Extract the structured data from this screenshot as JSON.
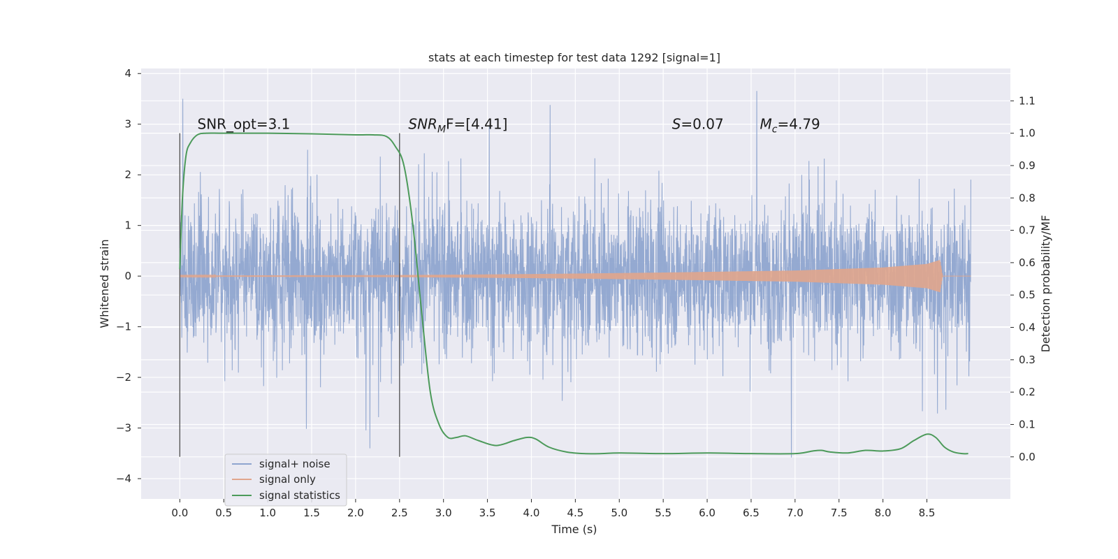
{
  "chart_data": {
    "type": "line",
    "title": "stats at each timestep for test data 1292 [signal=1]",
    "xlabel": "Time (s)",
    "ylabel_left": "Whitened strain",
    "ylabel_right": "Detection probability/MF",
    "xlim": [
      -0.44,
      9.45
    ],
    "ylim_left": [
      -4.4,
      4.1
    ],
    "ylim_right": [
      -0.13,
      1.2
    ],
    "x_ticks": [
      0.0,
      0.5,
      1.0,
      1.5,
      2.0,
      2.5,
      3.0,
      3.5,
      4.0,
      4.5,
      5.0,
      5.5,
      6.0,
      6.5,
      7.0,
      7.5,
      8.0,
      8.5
    ],
    "x_tick_labels": [
      "0.0",
      "0.5",
      "1.0",
      "1.5",
      "2.0",
      "2.5",
      "3.0",
      "3.5",
      "4.0",
      "4.5",
      "5.0",
      "5.5",
      "6.0",
      "6.5",
      "7.0",
      "7.5",
      "8.0",
      "8.5"
    ],
    "y_left_ticks": [
      4,
      3,
      2,
      1,
      0,
      -1,
      -2,
      -3,
      -4
    ],
    "y_left_tick_labels": [
      "4",
      "3",
      "2",
      "1",
      "0",
      "−1",
      "−2",
      "−3",
      "−4"
    ],
    "y_right_ticks": [
      1.1,
      1.0,
      0.9,
      0.8,
      0.7,
      0.6,
      0.5,
      0.4,
      0.3,
      0.2,
      0.1,
      0.0
    ],
    "y_right_tick_labels": [
      "1.1",
      "1.0",
      "0.9",
      "0.8",
      "0.7",
      "0.6",
      "0.5",
      "0.4",
      "0.3",
      "0.2",
      "0.1",
      "0.0"
    ],
    "grid": true,
    "legend_position": "bottom-left",
    "series": [
      {
        "name": "signal+ noise",
        "color": "#8fa5cf",
        "axis": "left",
        "x_range": [
          0.0,
          9.0
        ],
        "typical_amplitude": 1.2,
        "peak_max": 3.8,
        "peak_min": -4.0
      },
      {
        "name": "signal only",
        "color": "#e0a58c",
        "axis": "left",
        "x_range": [
          0.0,
          9.0
        ],
        "envelope": {
          "x": [
            0.0,
            2.5,
            4.0,
            5.5,
            7.0,
            8.0,
            8.5,
            8.65,
            8.68,
            9.0
          ],
          "amp": [
            0.01,
            0.02,
            0.04,
            0.07,
            0.11,
            0.17,
            0.24,
            0.32,
            0.0,
            0.0
          ]
        }
      },
      {
        "name": "signal statistics",
        "color": "#4c9a5a",
        "axis": "right",
        "x": [
          0.0,
          0.03,
          0.07,
          0.12,
          0.2,
          0.3,
          0.5,
          1.0,
          1.5,
          2.0,
          2.2,
          2.35,
          2.45,
          2.55,
          2.65,
          2.75,
          2.85,
          2.95,
          3.05,
          3.15,
          3.25,
          3.4,
          3.6,
          3.8,
          3.95,
          4.05,
          4.2,
          4.4,
          4.6,
          4.8,
          5.0,
          5.5,
          6.0,
          6.5,
          7.0,
          7.2,
          7.3,
          7.4,
          7.6,
          7.8,
          8.0,
          8.2,
          8.35,
          8.5,
          8.6,
          8.7,
          8.8,
          8.9,
          8.97
        ],
        "values": [
          0.58,
          0.8,
          0.93,
          0.97,
          0.995,
          1.0,
          1.0,
          1.0,
          0.998,
          0.995,
          0.995,
          0.99,
          0.96,
          0.9,
          0.72,
          0.45,
          0.2,
          0.1,
          0.06,
          0.06,
          0.065,
          0.05,
          0.035,
          0.05,
          0.06,
          0.055,
          0.03,
          0.015,
          0.01,
          0.01,
          0.012,
          0.01,
          0.012,
          0.01,
          0.01,
          0.018,
          0.02,
          0.015,
          0.012,
          0.02,
          0.018,
          0.025,
          0.05,
          0.07,
          0.06,
          0.03,
          0.015,
          0.01,
          0.01
        ]
      },
      {
        "name": "marker lines",
        "color": "#4d4d4d",
        "axis": "right",
        "x": [
          0.0,
          2.5
        ],
        "y_range": [
          0.0,
          1.0
        ]
      }
    ],
    "annotations": [
      {
        "kind": "plain",
        "text": "SNR_opt=3.1",
        "x": 0.2,
        "y": 3.0
      },
      {
        "kind": "sub",
        "main": "SNR",
        "sub": "M",
        "rest": "F=[4.41]",
        "x": 2.6,
        "y": 3.0
      },
      {
        "kind": "italic",
        "main": "S",
        "rest": "=0.07",
        "x": 5.6,
        "y": 3.0
      },
      {
        "kind": "sub",
        "main": "M",
        "sub": "c",
        "rest": "=4.79",
        "x": 6.6,
        "y": 3.0
      }
    ]
  }
}
